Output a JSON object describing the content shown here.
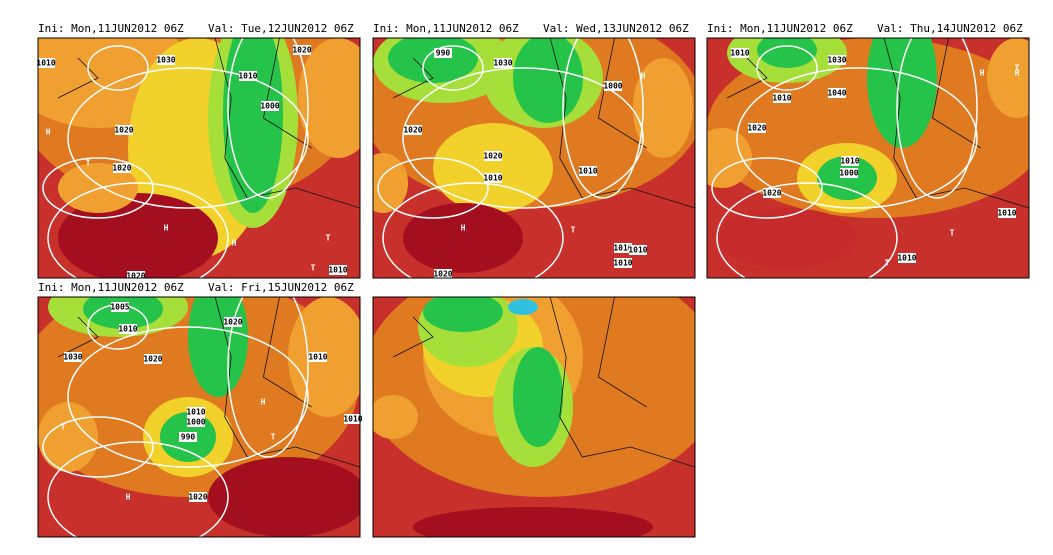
{
  "panels": [
    {
      "init": "Ini: Mon,11JUN2012 06Z",
      "valid": "Val: Tue,12JUN2012 06Z",
      "labels": [
        "1010",
        "1030",
        "1020",
        "H",
        "1020",
        "1000",
        "1010",
        "T",
        "H",
        "H",
        "T",
        "1010",
        "T",
        "1020",
        "1020"
      ]
    },
    {
      "init": "Ini: Mon,11JUN2012 06Z",
      "valid": "Val: Wed,13JUN2012 06Z",
      "labels": [
        "990",
        "1030",
        "1020",
        "1020",
        "1010",
        "1000",
        "H",
        "H",
        "1010",
        "1010",
        "T",
        "1020",
        "1010",
        "1010"
      ]
    },
    {
      "init": "Ini: Mon,11JUN2012 06Z",
      "valid": "Val: Thu,14JUN2012 06Z",
      "labels": [
        "1010",
        "1030",
        "1040",
        "1020",
        "1010",
        "1000",
        "1010",
        "1020",
        "H",
        "T",
        "T",
        "1010",
        "T",
        "1010",
        "H"
      ]
    },
    {
      "init": "Ini: Mon,11JUN2012 06Z",
      "valid": "Val: Fri,15JUN2012 06Z",
      "labels": [
        "1005",
        "1010",
        "1030",
        "1020",
        "1020",
        "1010",
        "990",
        "1000",
        "H",
        "T",
        "H",
        "1020",
        "T",
        "1010",
        "1010"
      ]
    }
  ]
}
